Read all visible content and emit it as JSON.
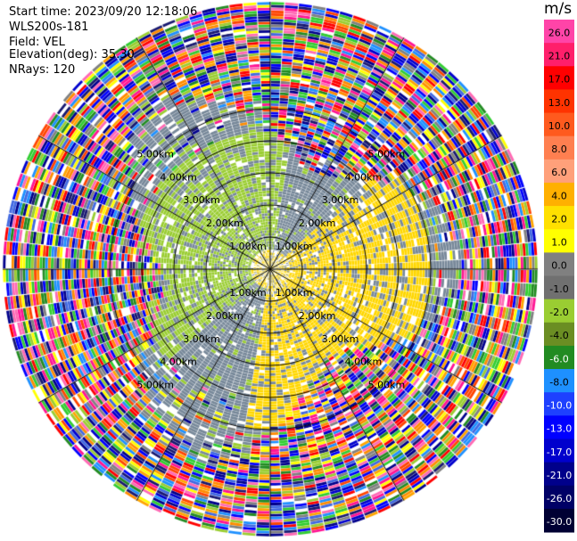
{
  "header": {
    "start_time": "Start time: 2023/09/20 12:18:06",
    "instrument": "WLS200s-181",
    "field": "Field: VEL",
    "elevation": "Elevation(deg): 35.30",
    "nrays": "NRays: 120"
  },
  "colorbar": {
    "unit": "m/s",
    "ticks": [
      "26.0",
      "21.0",
      "17.0",
      "13.0",
      "10.0",
      "8.0",
      "6.0",
      "4.0",
      "2.0",
      "1.0",
      "0.0",
      "-1.0",
      "-2.0",
      "-4.0",
      "-6.0",
      "-8.0",
      "-10.0",
      "-13.0",
      "-17.0",
      "-21.0",
      "-26.0",
      "-30.0"
    ],
    "colors": [
      "#ff44a8",
      "#ff1f6b",
      "#ff0000",
      "#ff3300",
      "#ff5a1e",
      "#ff7f50",
      "#ffa07a",
      "#ffb000",
      "#ffe000",
      "#ffff00",
      "#808080",
      "#707070",
      "#9acd32",
      "#6b8e23",
      "#228b22",
      "#1e90ff",
      "#1e40ff",
      "#0000ff",
      "#0000cd",
      "#00008b",
      "#000066",
      "#000033"
    ]
  },
  "chart_data": {
    "type": "heatmap",
    "projection": "polar-ppi",
    "title": "",
    "nrays": 120,
    "range_rings_km": [
      {
        "label": "1.00km",
        "km": 1.0
      },
      {
        "label": "2.00km",
        "km": 2.0
      },
      {
        "label": "3.00km",
        "km": 3.0
      },
      {
        "label": "4.00km",
        "km": 4.0
      },
      {
        "label": "5.00km",
        "km": 5.0
      }
    ],
    "max_range_km": 5.0,
    "velocity_range_ms": [
      -30,
      30
    ],
    "pattern": "near-field dipole: positive ~2 m/s (yellow) to the east/south-east, negative ~-2 m/s (green) to the west/north-west, ~0 m/s (gray) elsewhere; beyond ~3.3 km mostly noisy random colors"
  }
}
